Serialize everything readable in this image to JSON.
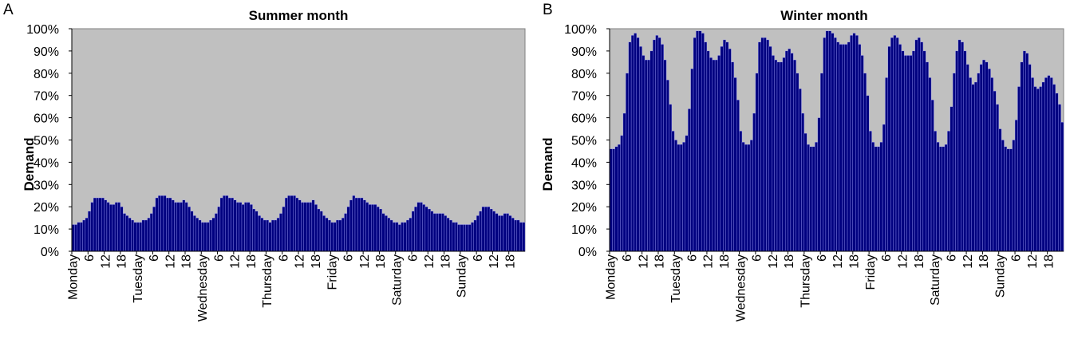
{
  "colors": {
    "plot_bg": "#c0c0c0",
    "bar": "#000080",
    "bar_edge": "#a8a8ff",
    "frame": "#808080"
  },
  "chart_data": [
    {
      "panel": "A",
      "type": "bar",
      "title": "Summer month",
      "xlabel": "",
      "ylabel": "Demand",
      "ylim": [
        0,
        100
      ],
      "yticks": [
        "0%",
        "10%",
        "20%",
        "30%",
        "40%",
        "50%",
        "60%",
        "70%",
        "80%",
        "90%",
        "100%"
      ],
      "xtick_labels": [
        "Monday",
        "6",
        "12",
        "18",
        "Tuesday",
        "6",
        "12",
        "18",
        "Wednesday",
        "6",
        "12",
        "18",
        "Thursday",
        "6",
        "12",
        "18",
        "Friday",
        "6",
        "12",
        "18",
        "Saturday",
        "6",
        "12",
        "18",
        "Sunday",
        "6",
        "12",
        "18"
      ],
      "x_unit": "hour of week (0-167)",
      "grid": false,
      "values": [
        12,
        12,
        13,
        13,
        14,
        15,
        18,
        22,
        24,
        24,
        24,
        24,
        23,
        22,
        21,
        21,
        22,
        22,
        20,
        17,
        16,
        15,
        14,
        13,
        13,
        13,
        14,
        14,
        15,
        17,
        20,
        24,
        25,
        25,
        25,
        24,
        24,
        23,
        22,
        22,
        22,
        23,
        22,
        20,
        18,
        16,
        15,
        14,
        13,
        13,
        13,
        14,
        15,
        17,
        20,
        24,
        25,
        25,
        24,
        24,
        23,
        22,
        22,
        21,
        22,
        22,
        21,
        19,
        18,
        16,
        15,
        14,
        14,
        13,
        14,
        14,
        15,
        17,
        20,
        24,
        25,
        25,
        25,
        24,
        23,
        22,
        22,
        22,
        22,
        23,
        21,
        19,
        18,
        16,
        15,
        14,
        13,
        13,
        14,
        14,
        15,
        17,
        20,
        23,
        25,
        24,
        24,
        24,
        23,
        22,
        21,
        21,
        21,
        20,
        19,
        17,
        16,
        15,
        14,
        13,
        13,
        12,
        13,
        13,
        14,
        15,
        18,
        20,
        22,
        22,
        21,
        20,
        19,
        18,
        17,
        17,
        17,
        17,
        16,
        15,
        14,
        13,
        13,
        12,
        12,
        12,
        12,
        12,
        13,
        14,
        16,
        18,
        20,
        20,
        20,
        19,
        18,
        17,
        16,
        16,
        17,
        17,
        16,
        15,
        14,
        14,
        13,
        13
      ]
    },
    {
      "panel": "B",
      "type": "bar",
      "title": "Winter month",
      "xlabel": "",
      "ylabel": "Demand",
      "ylim": [
        0,
        100
      ],
      "yticks": [
        "0%",
        "10%",
        "20%",
        "30%",
        "40%",
        "50%",
        "60%",
        "70%",
        "80%",
        "90%",
        "100%"
      ],
      "xtick_labels": [
        "Monday",
        "6",
        "12",
        "18",
        "Tuesday",
        "6",
        "12",
        "18",
        "Wednesday",
        "6",
        "12",
        "18",
        "Thursday",
        "6",
        "12",
        "18",
        "Friday",
        "6",
        "12",
        "18",
        "Saturday",
        "6",
        "12",
        "18",
        "Sunday",
        "6",
        "12",
        "18"
      ],
      "x_unit": "hour of week (0-167)",
      "grid": false,
      "values": [
        46,
        46,
        47,
        48,
        52,
        62,
        80,
        94,
        97,
        98,
        96,
        92,
        88,
        86,
        86,
        90,
        95,
        97,
        96,
        93,
        86,
        77,
        66,
        54,
        50,
        48,
        48,
        49,
        52,
        64,
        82,
        96,
        99,
        99,
        98,
        94,
        90,
        87,
        86,
        86,
        88,
        92,
        95,
        94,
        91,
        85,
        78,
        68,
        54,
        49,
        48,
        48,
        50,
        62,
        80,
        94,
        96,
        96,
        95,
        92,
        88,
        86,
        85,
        85,
        87,
        90,
        91,
        89,
        86,
        80,
        73,
        62,
        53,
        48,
        47,
        47,
        49,
        60,
        80,
        96,
        99,
        99,
        98,
        96,
        94,
        93,
        93,
        93,
        94,
        97,
        98,
        97,
        93,
        88,
        80,
        70,
        54,
        49,
        47,
        47,
        49,
        57,
        78,
        92,
        96,
        97,
        96,
        93,
        90,
        88,
        88,
        88,
        90,
        95,
        96,
        94,
        90,
        85,
        78,
        68,
        54,
        49,
        47,
        47,
        48,
        54,
        65,
        80,
        90,
        95,
        94,
        90,
        84,
        78,
        75,
        76,
        80,
        84,
        86,
        85,
        82,
        78,
        72,
        66,
        55,
        50,
        47,
        46,
        46,
        50,
        59,
        74,
        85,
        90,
        89,
        84,
        78,
        74,
        73,
        74,
        76,
        78,
        79,
        78,
        75,
        71,
        66,
        58
      ]
    }
  ],
  "panels": [
    {
      "letter": "A"
    },
    {
      "letter": "B"
    }
  ]
}
